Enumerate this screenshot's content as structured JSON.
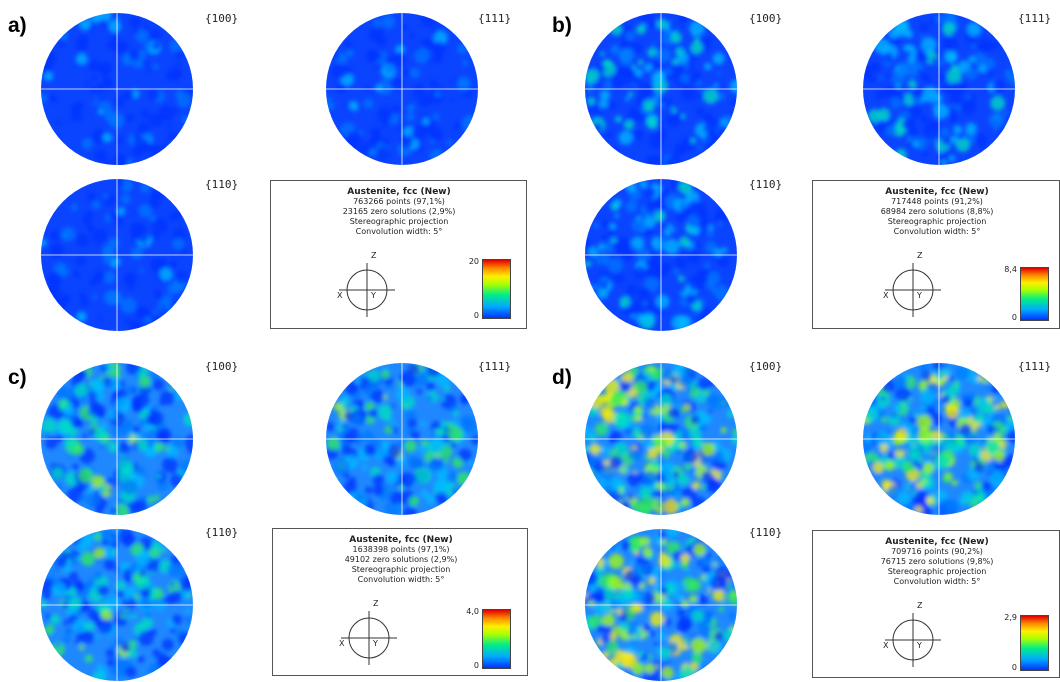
{
  "colors": {
    "colormap_low": "#0033ff",
    "colormap_mid": "#00ee88",
    "colormap_high": "#e00000",
    "background": "#ffffff"
  },
  "panels": [
    {
      "letter": "a)",
      "labels": [
        "{100}",
        "{111}",
        "{110}"
      ],
      "info": {
        "title": "Austenite, fcc (New)",
        "points": "763266 points  (97,1%)",
        "zero": "23165 zero solutions (2,9%)",
        "projection": "Stereographic projection",
        "convolution": "Convolution width: 5°"
      },
      "legend": {
        "max": "20",
        "min": "0"
      },
      "axes": {
        "z": "Z",
        "x": "X",
        "y": "Y"
      },
      "intensity_level": 0.05
    },
    {
      "letter": "b)",
      "labels": [
        "{100}",
        "{111}",
        "{110}"
      ],
      "info": {
        "title": "Austenite, fcc (New)",
        "points": "717448 points  (91,2%)",
        "zero": "68984 zero solutions (8,8%)",
        "projection": "Stereographic projection",
        "convolution": "Convolution width: 5°"
      },
      "legend": {
        "max": "8,4",
        "min": "0"
      },
      "axes": {
        "z": "Z",
        "x": "X",
        "y": "Y"
      },
      "intensity_level": 0.2
    },
    {
      "letter": "c)",
      "labels": [
        "{100}",
        "{111}",
        "{110}"
      ],
      "info": {
        "title": "Austenite, fcc (New)",
        "points": "1638398 points  (97,1%)",
        "zero": "49102 zero solutions (2,9%)",
        "projection": "Stereographic projection",
        "convolution": "Convolution width: 5°"
      },
      "legend": {
        "max": "4,0",
        "min": "0"
      },
      "axes": {
        "z": "Z",
        "x": "X",
        "y": "Y"
      },
      "intensity_level": 0.35
    },
    {
      "letter": "d)",
      "labels": [
        "{100}",
        "{111}",
        "{110}"
      ],
      "info": {
        "title": "Austenite, fcc (New)",
        "points": "709716 points  (90,2%)",
        "zero": "76715 zero solutions (9,8%)",
        "projection": "Stereographic projection",
        "convolution": "Convolution width: 5°"
      },
      "legend": {
        "max": "2,9",
        "min": "0"
      },
      "axes": {
        "z": "Z",
        "x": "X",
        "y": "Y"
      },
      "intensity_level": 0.55
    }
  ]
}
